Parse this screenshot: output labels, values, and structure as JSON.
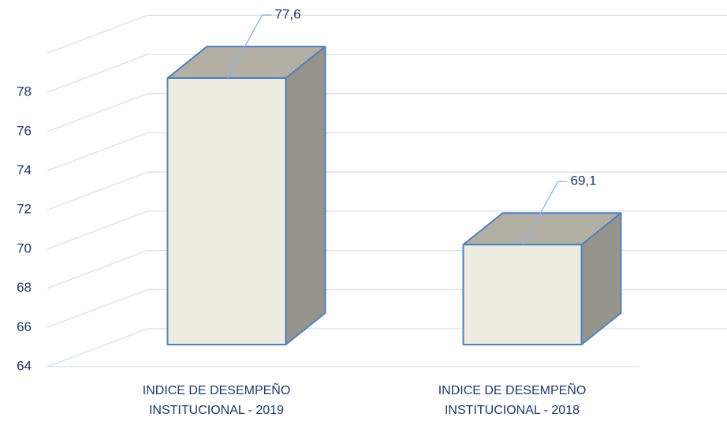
{
  "chart_data": {
    "type": "bar3d",
    "categories": [
      "INDICE DE DESEMPEÑO INSTITUCIONAL - 2019",
      "INDICE DE DESEMPEÑO INSTITUCIONAL - 2018"
    ],
    "values": [
      77.6,
      69.1
    ],
    "value_labels": [
      "77,6",
      "69,1"
    ],
    "colors": {
      "front": "#eeebe1",
      "top": "#b4afa5",
      "side": "#97948c",
      "edge": "#4f81bd"
    },
    "ylim": [
      64,
      80
    ],
    "yticks": [
      64,
      66,
      68,
      70,
      72,
      74,
      76,
      78
    ],
    "grid": true
  }
}
